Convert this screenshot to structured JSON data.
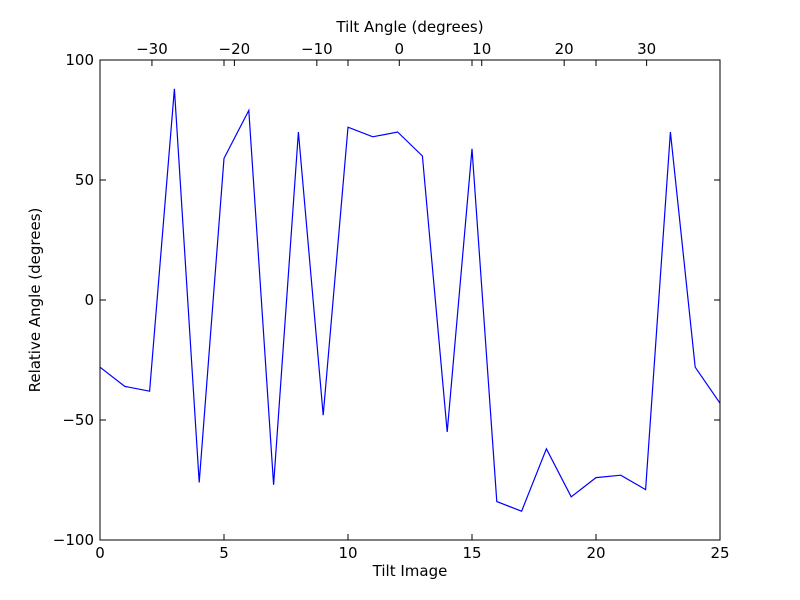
{
  "chart_data": {
    "type": "line",
    "title": "",
    "xlabel": "Tilt Image",
    "ylabel": "Relative Angle (degrees)",
    "x2label": "Tilt Angle (degrees)",
    "xlim": [
      0,
      25
    ],
    "ylim": [
      -100,
      100
    ],
    "x2lim": [
      -36.3,
      38.9
    ],
    "grid": false,
    "xticks": [
      0,
      5,
      10,
      15,
      20,
      25
    ],
    "yticks": [
      -100,
      -50,
      0,
      50,
      100
    ],
    "x2ticks": [
      -30,
      -20,
      -10,
      0,
      10,
      20,
      30
    ],
    "xtick_labels": [
      "0",
      "5",
      "10",
      "15",
      "20",
      "25"
    ],
    "ytick_labels": [
      "−100",
      "−50",
      "0",
      "50",
      "100"
    ],
    "x2tick_labels": [
      "−30",
      "−20",
      "−10",
      "0",
      "10",
      "20",
      "30"
    ],
    "series": [
      {
        "color": "#0000ff",
        "x": [
          0,
          1,
          2,
          3,
          4,
          5,
          6,
          7,
          8,
          9,
          10,
          11,
          12,
          13,
          14,
          15,
          16,
          17,
          18,
          19,
          20,
          21,
          22,
          23,
          24,
          25
        ],
        "y": [
          -28,
          -36,
          -38,
          88,
          -76,
          59,
          79,
          -77,
          70,
          -48,
          72,
          68,
          70,
          60,
          -55,
          63,
          -84,
          -88,
          -62,
          -82,
          -74,
          -73,
          -79,
          70,
          -28,
          -43
        ]
      }
    ]
  }
}
